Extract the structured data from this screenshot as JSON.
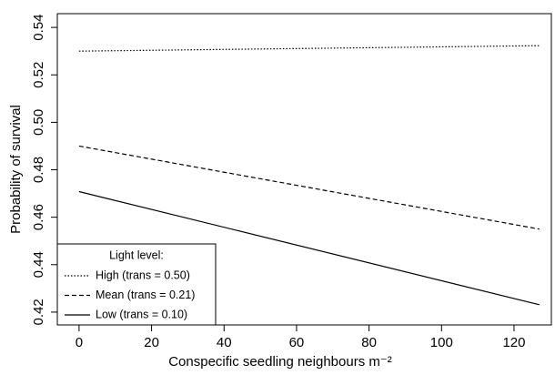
{
  "chart_data": {
    "type": "line",
    "x_label": "Conspecific seedling neighbours m⁻²",
    "y_label": "Probability of survival",
    "legend_title": "Light level:",
    "legend": "bottom-left",
    "x": [
      0,
      127
    ],
    "series": [
      {
        "name": "High  (trans = 0.50)",
        "color": "#000000",
        "dash": "dotted",
        "values": [
          0.53,
          0.5323
        ]
      },
      {
        "name": "Mean (trans = 0.21)",
        "color": "#000000",
        "dash": "dashed",
        "values": [
          0.49,
          0.455
        ]
      },
      {
        "name": "Low (trans = 0.10)",
        "color": "#000000",
        "dash": "solid",
        "values": [
          0.4708,
          0.4231
        ]
      }
    ],
    "xlim": [
      -6,
      130.3
    ],
    "ylim": [
      0.4146,
      0.5458
    ],
    "xticks": [
      0,
      20,
      40,
      60,
      80,
      100,
      120
    ],
    "yticks": [
      0.42,
      0.44,
      0.46,
      0.48,
      {
        "value": 0.5,
        "label": "0.50"
      },
      0.52,
      0.54
    ]
  }
}
